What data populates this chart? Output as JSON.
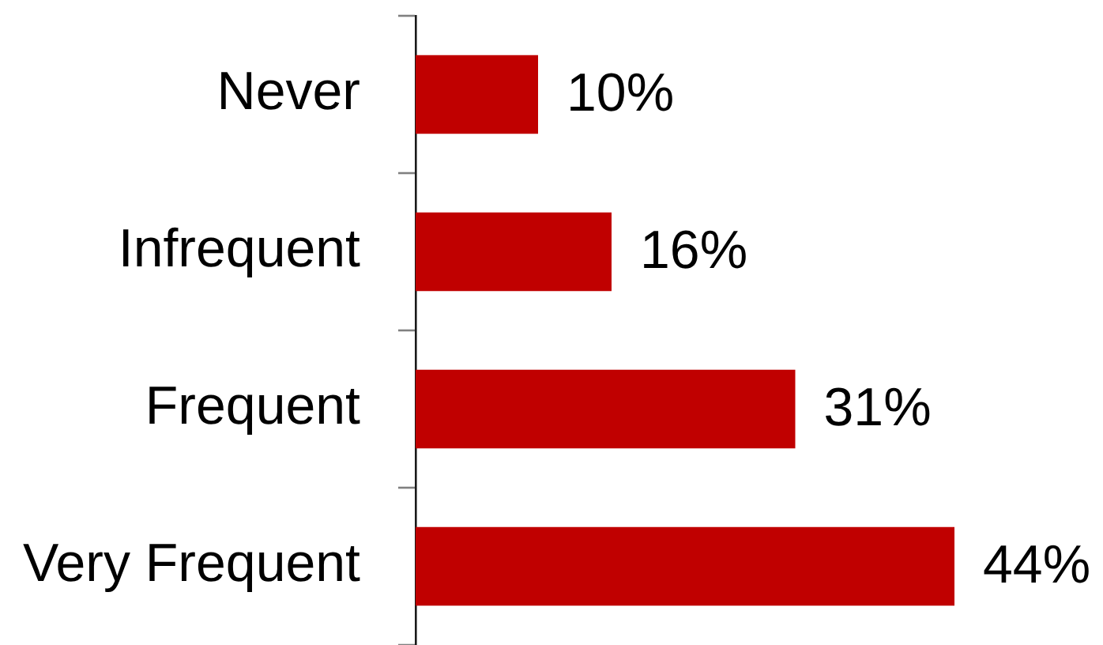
{
  "chart_data": {
    "type": "bar",
    "orientation": "horizontal",
    "categories": [
      "Never",
      "Infrequent",
      "Frequent",
      "Very Frequent"
    ],
    "values": [
      10,
      16,
      31,
      44
    ],
    "color": "#c00000",
    "value_labels": [
      "10%",
      "16%",
      "31%",
      "44%"
    ]
  }
}
